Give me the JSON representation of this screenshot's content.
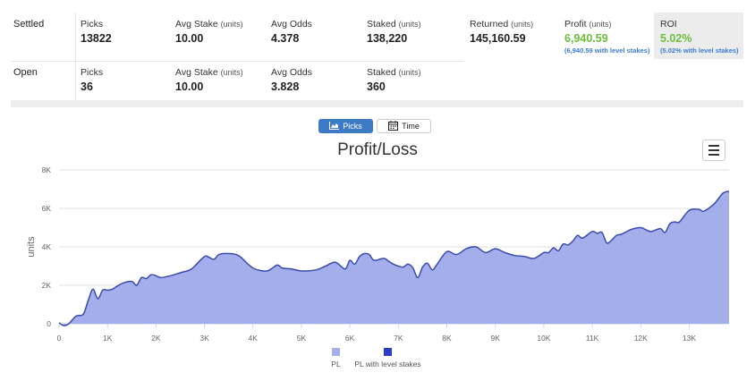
{
  "stats": {
    "settled": {
      "label": "Settled",
      "picks_label": "Picks",
      "picks": "13822",
      "avg_stake_label": "Avg Stake",
      "avg_stake_unit": "(units)",
      "avg_stake": "10.00",
      "avg_odds_label": "Avg Odds",
      "avg_odds": "4.378",
      "staked_label": "Staked",
      "staked_unit": "(units)",
      "staked": "138,220",
      "returned_label": "Returned",
      "returned_unit": "(units)",
      "returned": "145,160.59",
      "profit_label": "Profit",
      "profit_unit": "(units)",
      "profit": "6,940.59",
      "profit_level": "(6,940.59 with level stakes)",
      "roi_label": "ROI",
      "roi": "5.02%",
      "roi_level": "(5.02% with level stakes)"
    },
    "open": {
      "label": "Open",
      "picks_label": "Picks",
      "picks": "36",
      "avg_stake_label": "Avg Stake",
      "avg_stake_unit": "(units)",
      "avg_stake": "10.00",
      "avg_odds_label": "Avg Odds",
      "avg_odds": "3.828",
      "staked_label": "Staked",
      "staked_unit": "(units)",
      "staked": "360"
    }
  },
  "toggle": {
    "picks": "Picks",
    "time": "Time",
    "active": "picks"
  },
  "colors": {
    "area_fill": "#a4aeea",
    "area_line": "#3b4ab0",
    "level_series": "#2c3ec9",
    "positive": "#6bbf3a",
    "accent": "#3d7bc7"
  },
  "chart_data": {
    "type": "area",
    "title": "Profit/Loss",
    "xlabel": "",
    "ylabel": "units",
    "xlim": [
      0,
      13822
    ],
    "ylim": [
      0,
      8000
    ],
    "x_ticks": [
      0,
      1000,
      2000,
      3000,
      4000,
      5000,
      6000,
      7000,
      8000,
      9000,
      10000,
      11000,
      12000,
      13000
    ],
    "x_tick_labels": [
      "0",
      "1K",
      "2K",
      "3K",
      "4K",
      "5K",
      "6K",
      "7K",
      "8K",
      "9K",
      "10K",
      "11K",
      "12K",
      "13K"
    ],
    "y_ticks": [
      0,
      2000,
      4000,
      6000,
      8000
    ],
    "y_tick_labels": [
      "0",
      "2K",
      "4K",
      "6K",
      "8K"
    ],
    "grid": true,
    "legend_position": "bottom",
    "series": [
      {
        "name": "PL",
        "x": [
          0,
          100,
          200,
          350,
          500,
          600,
          700,
          800,
          900,
          1000,
          1100,
          1300,
          1500,
          1600,
          1700,
          1800,
          1900,
          2000,
          2100,
          2300,
          2500,
          2700,
          2800,
          3000,
          3100,
          3200,
          3300,
          3500,
          3700,
          3900,
          4000,
          4100,
          4300,
          4500,
          4600,
          4800,
          5000,
          5300,
          5500,
          5700,
          5900,
          6000,
          6100,
          6200,
          6300,
          6400,
          6500,
          6700,
          6800,
          6900,
          7000,
          7100,
          7200,
          7300,
          7400,
          7500,
          7600,
          7700,
          7800,
          8000,
          8200,
          8400,
          8600,
          8800,
          9000,
          9200,
          9400,
          9600,
          9800,
          10000,
          10100,
          10200,
          10300,
          10400,
          10500,
          10600,
          10700,
          10800,
          11000,
          11100,
          11200,
          11300,
          11400,
          11500,
          11600,
          11800,
          12000,
          12200,
          12400,
          12500,
          12600,
          12700,
          12800,
          13000,
          13200,
          13300,
          13500,
          13600,
          13700,
          13822
        ],
        "values": [
          50,
          -100,
          0,
          400,
          500,
          1200,
          1800,
          1300,
          1750,
          1750,
          1800,
          2100,
          2200,
          2000,
          2400,
          2350,
          2550,
          2500,
          2400,
          2500,
          2650,
          2800,
          3000,
          3500,
          3450,
          3350,
          3600,
          3650,
          3550,
          3100,
          2900,
          2800,
          2750,
          3050,
          2900,
          2850,
          2750,
          2800,
          3000,
          3200,
          2850,
          3300,
          3100,
          3500,
          3650,
          3600,
          3300,
          3400,
          3250,
          3100,
          3000,
          2950,
          3100,
          2900,
          2400,
          2950,
          3150,
          2800,
          3100,
          3750,
          3600,
          3900,
          4000,
          3700,
          3900,
          3700,
          3550,
          3500,
          3400,
          3700,
          3700,
          3950,
          3800,
          4150,
          4100,
          4300,
          4600,
          4450,
          4800,
          4700,
          4750,
          4200,
          4350,
          4600,
          4650,
          4900,
          5000,
          4800,
          4950,
          4750,
          5200,
          5300,
          5300,
          5900,
          5950,
          5850,
          6200,
          6500,
          6800,
          6900
        ]
      },
      {
        "name": "PL with level stakes",
        "values": []
      }
    ]
  }
}
